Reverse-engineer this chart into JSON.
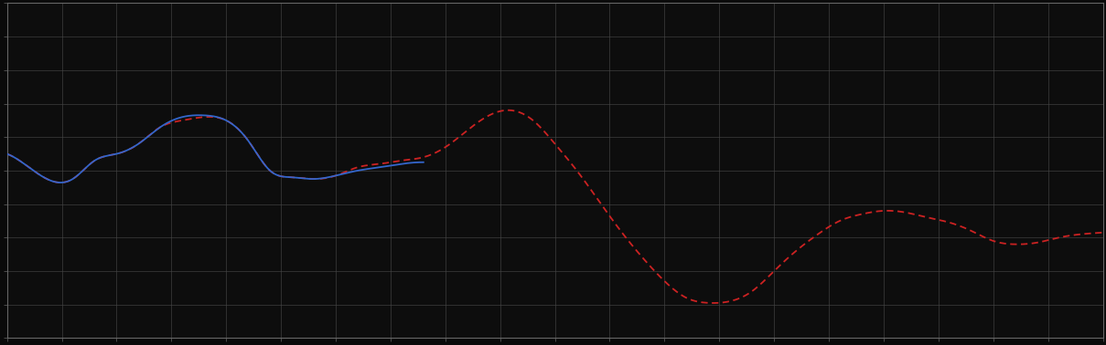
{
  "background_color": "#0a0a0a",
  "plot_bg_color": "#0d0d0d",
  "grid_color": "#444444",
  "line1_color": "#3366cc",
  "line2_color": "#cc2222",
  "line_width": 1.3,
  "figsize": [
    12.09,
    3.78
  ],
  "dpi": 100,
  "xlim": [
    0,
    100
  ],
  "ylim": [
    0,
    10
  ],
  "spine_color": "#666666",
  "blue_x": [
    0,
    2,
    4,
    6,
    8,
    10,
    12,
    14,
    16,
    18,
    20,
    22,
    24,
    26,
    28,
    30,
    32,
    34,
    36,
    38
  ],
  "blue_y": [
    5.5,
    5.1,
    4.7,
    4.75,
    5.3,
    5.5,
    5.8,
    6.3,
    6.6,
    6.65,
    6.5,
    5.9,
    5.0,
    4.8,
    4.75,
    4.85,
    5.0,
    5.1,
    5.2,
    5.25
  ],
  "red_x": [
    0,
    2,
    4,
    6,
    8,
    10,
    12,
    14,
    16,
    18,
    20,
    22,
    24,
    26,
    28,
    30,
    32,
    34,
    36,
    38,
    40,
    42,
    44,
    46,
    48,
    50,
    52,
    54,
    56,
    58,
    60,
    62,
    64,
    66,
    68,
    70,
    72,
    74,
    76,
    78,
    80,
    82,
    84,
    86,
    88,
    90,
    92,
    94,
    96,
    98,
    100
  ],
  "red_y": [
    5.5,
    5.1,
    4.7,
    4.75,
    5.3,
    5.5,
    5.8,
    6.3,
    6.5,
    6.6,
    6.5,
    5.9,
    5.0,
    4.8,
    4.75,
    4.85,
    5.1,
    5.2,
    5.3,
    5.4,
    5.7,
    6.2,
    6.65,
    6.8,
    6.5,
    5.8,
    5.0,
    4.1,
    3.2,
    2.4,
    1.7,
    1.2,
    1.05,
    1.1,
    1.4,
    2.0,
    2.6,
    3.1,
    3.5,
    3.7,
    3.8,
    3.75,
    3.6,
    3.45,
    3.2,
    2.9,
    2.8,
    2.85,
    3.0,
    3.1,
    3.15
  ]
}
